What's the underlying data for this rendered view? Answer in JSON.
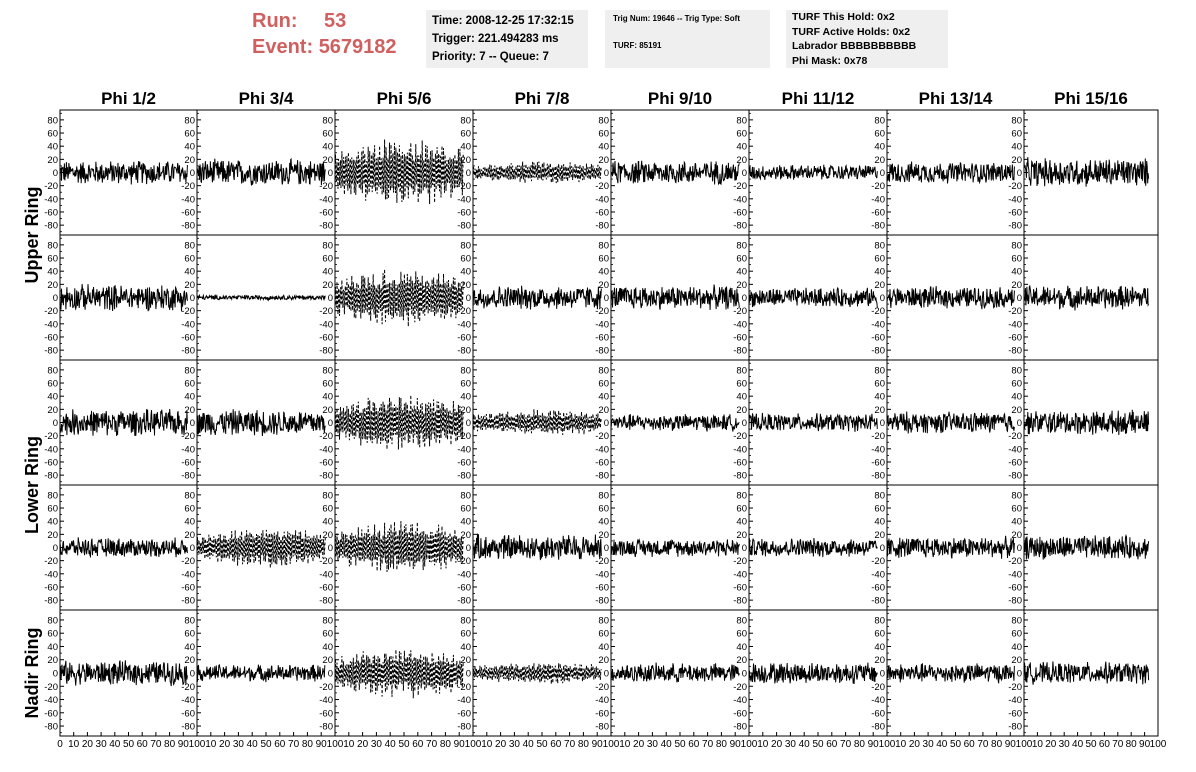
{
  "header": {
    "run_label": "Run:",
    "run_value": "53",
    "event_label": "Event:",
    "event_value": "5679182",
    "accent_color": "#d06060",
    "time_line": "Time: 2008-12-25 17:32:15",
    "trigger_line": "Trigger: 221.494283 ms",
    "priority_line": "Priority: 7 -- Queue: 7",
    "trig_num_line": "Trig Num: 19646 -- Trig Type: Soft",
    "turf_line": "TURF: 85191",
    "turf_this_hold": "TURF This Hold: 0x2",
    "turf_active_holds": "TURF Active Holds: 0x2",
    "labrador": "Labrador BBBBBBBBBB",
    "phi_mask": "Phi Mask: 0x78"
  },
  "chart_data": {
    "type": "line",
    "columns": [
      "Phi 1/2",
      "Phi 3/4",
      "Phi 5/6",
      "Phi 7/8",
      "Phi 9/10",
      "Phi 11/12",
      "Phi 13/14",
      "Phi 15/16"
    ],
    "row_labels": [
      {
        "text": "Upper Ring",
        "rows": [
          0,
          1
        ]
      },
      {
        "text": "Lower Ring",
        "rows": [
          2,
          3
        ]
      },
      {
        "text": "Nadir Ring",
        "rows": [
          4,
          4
        ]
      }
    ],
    "xlim": [
      0,
      100
    ],
    "ylim": [
      -95,
      95
    ],
    "yticks": [
      -80,
      -60,
      -40,
      -20,
      0,
      20,
      40,
      60,
      80
    ],
    "xticks": [
      0,
      10,
      20,
      30,
      40,
      50,
      60,
      70,
      80,
      90,
      100
    ],
    "x_tick_labels_first_panel": [
      "0",
      "10",
      "20",
      "30",
      "40",
      "50",
      "60",
      "70",
      "80",
      "90",
      "100"
    ],
    "x_tick_labels_other_panels": [
      "10",
      "20",
      "30",
      "40",
      "50",
      "60",
      "70",
      "80",
      "90",
      "100"
    ],
    "waveform_x_range": [
      0,
      93
    ],
    "waveform_samples": 260,
    "panels": [
      [
        {
          "amp": 20,
          "style": "solid"
        },
        {
          "amp": 22,
          "style": "solid"
        },
        {
          "amp": 48,
          "style": "dashed"
        },
        {
          "amp": 16,
          "style": "dashed"
        },
        {
          "amp": 20,
          "style": "solid"
        },
        {
          "amp": 13,
          "style": "solid"
        },
        {
          "amp": 18,
          "style": "solid"
        },
        {
          "amp": 24,
          "style": "solid"
        }
      ],
      [
        {
          "amp": 22,
          "style": "solid"
        },
        {
          "amp": 4,
          "style": "solid"
        },
        {
          "amp": 42,
          "style": "dashed"
        },
        {
          "amp": 20,
          "style": "solid"
        },
        {
          "amp": 20,
          "style": "solid"
        },
        {
          "amp": 16,
          "style": "solid"
        },
        {
          "amp": 18,
          "style": "solid"
        },
        {
          "amp": 20,
          "style": "solid"
        }
      ],
      [
        {
          "amp": 22,
          "style": "solid"
        },
        {
          "amp": 22,
          "style": "solid"
        },
        {
          "amp": 40,
          "style": "dashed"
        },
        {
          "amp": 20,
          "style": "dashed"
        },
        {
          "amp": 14,
          "style": "solid"
        },
        {
          "amp": 15,
          "style": "solid"
        },
        {
          "amp": 18,
          "style": "solid"
        },
        {
          "amp": 20,
          "style": "solid"
        }
      ],
      [
        {
          "amp": 16,
          "style": "solid"
        },
        {
          "amp": 30,
          "style": "dashed"
        },
        {
          "amp": 38,
          "style": "dashed"
        },
        {
          "amp": 22,
          "style": "solid"
        },
        {
          "amp": 15,
          "style": "solid"
        },
        {
          "amp": 16,
          "style": "solid"
        },
        {
          "amp": 18,
          "style": "solid"
        },
        {
          "amp": 20,
          "style": "solid"
        }
      ],
      [
        {
          "amp": 20,
          "style": "solid"
        },
        {
          "amp": 14,
          "style": "solid"
        },
        {
          "amp": 36,
          "style": "dashed"
        },
        {
          "amp": 16,
          "style": "dashed"
        },
        {
          "amp": 16,
          "style": "solid"
        },
        {
          "amp": 18,
          "style": "solid"
        },
        {
          "amp": 16,
          "style": "solid"
        },
        {
          "amp": 18,
          "style": "solid"
        }
      ]
    ]
  }
}
